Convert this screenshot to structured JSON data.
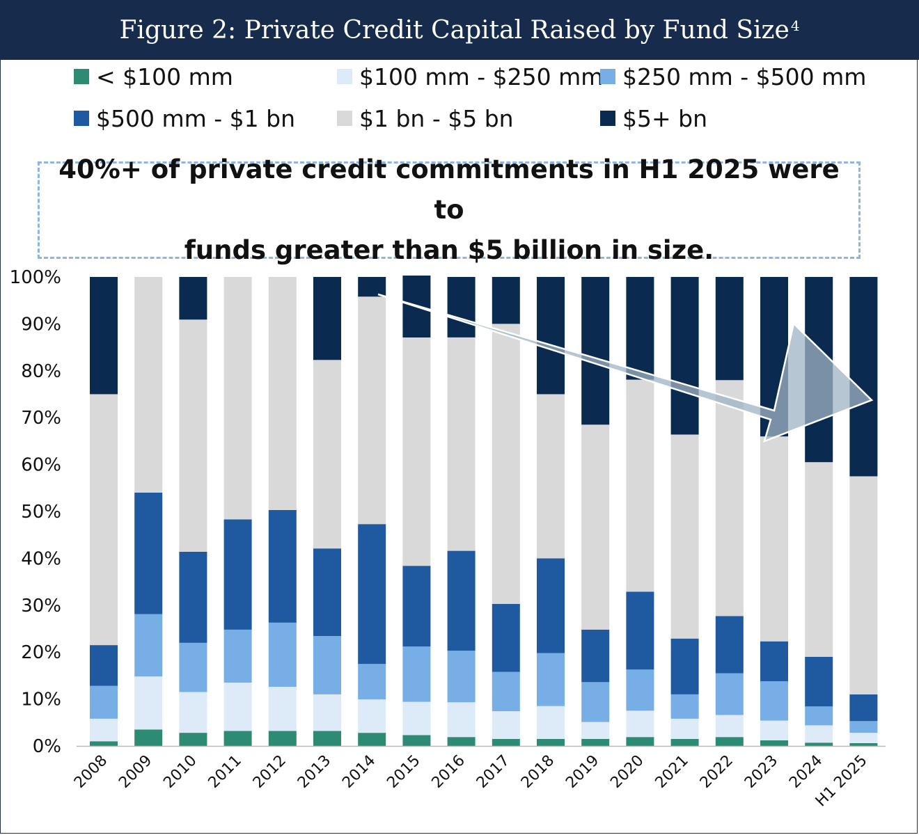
{
  "header": {
    "title": "Figure 2: Private Credit Capital Raised by Fund Size",
    "footnote": "4"
  },
  "callout": {
    "line1": "40%+ of private credit commitments in H1 2025 were to",
    "line2": "funds greater than $5 billion in size."
  },
  "legend": [
    {
      "label": "< $100 mm",
      "color": "#2e8b73"
    },
    {
      "label": "$100 mm - $250 mm",
      "color": "#ddeaf8"
    },
    {
      "label": "$250 mm - $500 mm",
      "color": "#78aee6"
    },
    {
      "label": "$500 mm - $1 bn",
      "color": "#1f5aa0"
    },
    {
      "label": "$1 bn - $5 bn",
      "color": "#d9d9d9"
    },
    {
      "label": "$5+ bn",
      "color": "#0a2a4f"
    }
  ],
  "chart_data": {
    "type": "bar",
    "stacked": true,
    "categories": [
      "2008",
      "2009",
      "2010",
      "2011",
      "2012",
      "2013",
      "2014",
      "2015",
      "2016",
      "2017",
      "2018",
      "2019",
      "2020",
      "2021",
      "2022",
      "2023",
      "2024",
      "H1 2025"
    ],
    "ylim": [
      0,
      100
    ],
    "yticks": [
      "0%",
      "10%",
      "20%",
      "30%",
      "40%",
      "50%",
      "60%",
      "70%",
      "80%",
      "90%",
      "100%"
    ],
    "grid": false,
    "legend_position": "top",
    "series": [
      {
        "name": "< $100 mm",
        "color": "#2e8b73",
        "values": [
          1,
          3.5,
          2.8,
          3.2,
          3.2,
          3.2,
          2.8,
          2.3,
          1.9,
          1.5,
          1.5,
          1.5,
          1.9,
          1.5,
          1.9,
          1.2,
          0.7,
          0.6
        ]
      },
      {
        "name": "$100 mm - $250 mm",
        "color": "#ddeaf8",
        "values": [
          4.8,
          11.3,
          8.7,
          10.3,
          9.4,
          7.8,
          7.1,
          7.1,
          7.4,
          5.9,
          7.0,
          3.6,
          5.6,
          4.3,
          4.7,
          4.2,
          3.7,
          2.2
        ]
      },
      {
        "name": "$250 mm - $500 mm",
        "color": "#78aee6",
        "values": [
          7,
          13.3,
          10.5,
          11.3,
          13.7,
          12.4,
          7.6,
          11.8,
          11,
          8.4,
          11.3,
          8.5,
          8.8,
          5.2,
          8.9,
          8.4,
          4,
          2.5
        ]
      },
      {
        "name": "$500 mm - $1 bn",
        "color": "#1f5aa0",
        "values": [
          8.7,
          25.9,
          19.4,
          23.5,
          24,
          18.7,
          29.8,
          17.2,
          21.3,
          14.5,
          20.2,
          11.2,
          16.6,
          11.9,
          12.2,
          8.5,
          10.6,
          5.7
        ]
      },
      {
        "name": "$1 bn - $5 bn",
        "color": "#d9d9d9",
        "values": [
          53.5,
          46,
          49.5,
          51.7,
          49.7,
          40.2,
          48.5,
          48.7,
          45.5,
          59.7,
          35,
          43.7,
          45.2,
          43.5,
          50.3,
          43.7,
          41.5,
          46.5
        ]
      },
      {
        "name": "$5+ bn",
        "color": "#0a2a4f",
        "values": [
          25,
          0,
          9.1,
          0,
          0,
          17.7,
          4.2,
          13.2,
          12.9,
          10,
          25,
          31.5,
          21.9,
          33.6,
          22,
          34,
          39.5,
          42.5
        ]
      }
    ]
  }
}
